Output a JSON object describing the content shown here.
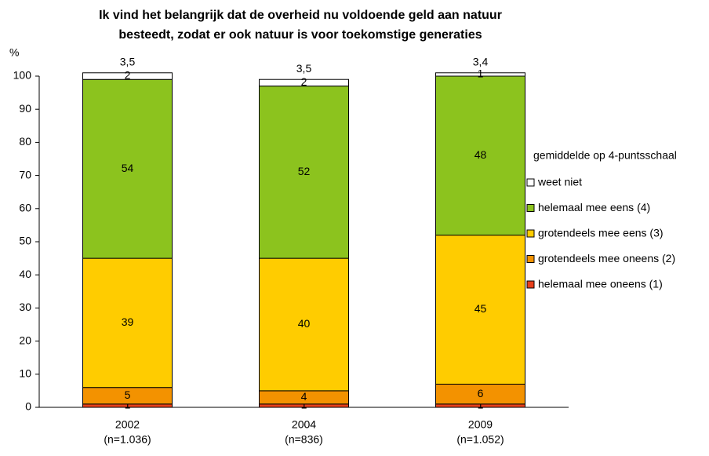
{
  "chart_data": {
    "type": "stacked_bar",
    "title": [
      "Ik vind het belangrijk dat de overheid nu voldoende geld aan natuur",
      "besteedt, zodat er ook natuur is voor toekomstige generaties"
    ],
    "y_label": "%",
    "categories": [
      "2002",
      "2004",
      "2009"
    ],
    "sample_sizes": [
      "(n=1.036)",
      "(n=836)",
      "(n=1.052)"
    ],
    "series": [
      {
        "name": "helemaal mee oneens (1)",
        "color": "#e8401c",
        "values": [
          1,
          1,
          1
        ]
      },
      {
        "name": "grotendeels mee oneens (2)",
        "color": "#f39200",
        "values": [
          5,
          4,
          6
        ]
      },
      {
        "name": "grotendeels mee eens (3)",
        "color": "#ffcc00",
        "values": [
          39,
          40,
          45
        ]
      },
      {
        "name": "helemaal mee eens (4)",
        "color": "#8cc31e",
        "values": [
          54,
          52,
          48
        ]
      },
      {
        "name": "weet niet",
        "color": "#ffffff",
        "values": [
          2,
          2,
          1
        ]
      }
    ],
    "averages": {
      "name": "gemiddelde op 4-puntsschaal",
      "values": [
        3.5,
        3.5,
        3.4
      ],
      "value_labels": [
        "3,5",
        "3,5",
        "3,4"
      ]
    },
    "ylim": [
      0,
      100
    ],
    "yticks": [
      0,
      10,
      20,
      30,
      40,
      50,
      60,
      70,
      80,
      90,
      100
    ],
    "grid": false,
    "legend": "right"
  }
}
